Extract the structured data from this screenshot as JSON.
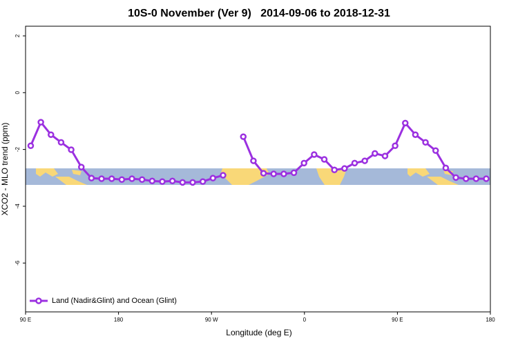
{
  "chart_data": {
    "type": "line",
    "title": "10S-0 November (Ver 9)   2014-09-06 to 2018-12-31",
    "xlabel": "Longitude (deg E)",
    "ylabel": "XCO2 - MLO trend (ppm)",
    "x": [
      95,
      104.8,
      114.6,
      124.4,
      134.2,
      144,
      153.8,
      163.6,
      173.4,
      183.2,
      193,
      202.8,
      212.6,
      222.4,
      232.2,
      242,
      251.8,
      261.6,
      271.4,
      281.2,
      291,
      300.8,
      310.6,
      320.4,
      330.2,
      340,
      349.8,
      359.6,
      369.4,
      379.2,
      389,
      398.8,
      408.6,
      418.4,
      428.2,
      438,
      447.8,
      457.6,
      467.4,
      477.2,
      487,
      496.8,
      506.6,
      516.4,
      526.2,
      536
    ],
    "series": [
      {
        "name": "Land (Nadir&Glint) and Ocean (Glint)",
        "color": "#9b30e0",
        "values": [
          -1.87,
          -1.04,
          -1.48,
          -1.75,
          -2.01,
          -2.62,
          -3.01,
          -3.03,
          -3.03,
          -3.06,
          -3.03,
          -3.06,
          -3.11,
          -3.13,
          -3.11,
          -3.16,
          -3.16,
          -3.13,
          -3.01,
          -2.91,
          null,
          -1.55,
          -2.4,
          -2.84,
          -2.86,
          -2.86,
          -2.82,
          -2.48,
          -2.18,
          -2.35,
          -2.72,
          -2.67,
          -2.48,
          -2.4,
          -2.14,
          -2.23,
          -1.87,
          -1.07,
          -1.48,
          -1.75,
          -2.04,
          -2.65,
          -2.99,
          -3.03,
          -3.03,
          -3.03
        ]
      }
    ],
    "xlim": [
      90,
      540
    ],
    "xticks": [
      {
        "value": 90,
        "label": "90 E"
      },
      180,
      {
        "value": 270,
        "label": "90 W"
      },
      {
        "value": 360,
        "label": "0"
      },
      {
        "value": 450,
        "label": "90 E"
      },
      {
        "value": 540,
        "label": "180"
      }
    ],
    "ylim": [
      -7.72,
      2.34
    ],
    "yticks": [
      -6,
      -4,
      -2,
      0,
      2
    ],
    "legend": "bottom-left"
  }
}
